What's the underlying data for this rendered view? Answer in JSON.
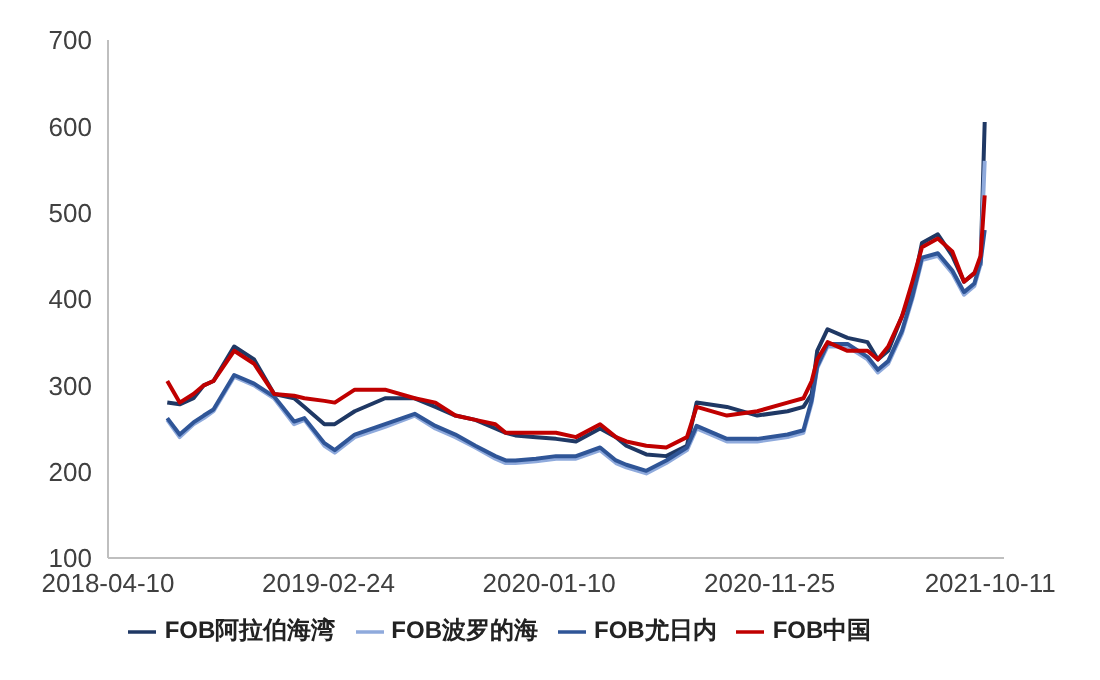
{
  "chart_data": {
    "type": "line",
    "x": [
      "2018-07-05",
      "2018-07-23",
      "2018-08-12",
      "2018-08-27",
      "2018-09-10",
      "2018-10-10",
      "2018-11-08",
      "2018-12-07",
      "2019-01-05",
      "2019-01-20",
      "2019-02-18",
      "2019-03-05",
      "2019-04-03",
      "2019-05-17",
      "2019-06-29",
      "2019-07-29",
      "2019-08-27",
      "2019-09-25",
      "2019-10-24",
      "2019-11-08",
      "2019-11-22",
      "2019-12-22",
      "2020-01-20",
      "2020-02-18",
      "2020-03-24",
      "2020-04-16",
      "2020-05-01",
      "2020-05-30",
      "2020-06-28",
      "2020-07-28",
      "2020-08-11",
      "2020-09-24",
      "2020-11-07",
      "2020-12-21",
      "2021-01-13",
      "2021-01-25",
      "2021-02-02",
      "2021-02-17",
      "2021-03-18",
      "2021-04-16",
      "2021-05-01",
      "2021-05-16",
      "2021-06-05",
      "2021-06-20",
      "2021-07-04",
      "2021-07-27",
      "2021-08-17",
      "2021-09-03",
      "2021-09-18",
      "2021-09-27",
      "2021-10-03"
    ],
    "series": [
      {
        "name": "FOB阿拉伯海湾",
        "color": "#1f3864",
        "values": [
          280,
          278,
          285,
          300,
          305,
          345,
          330,
          290,
          285,
          275,
          255,
          255,
          270,
          285,
          285,
          275,
          265,
          260,
          250,
          245,
          242,
          240,
          238,
          235,
          250,
          240,
          230,
          220,
          218,
          230,
          280,
          275,
          265,
          270,
          275,
          290,
          340,
          365,
          355,
          350,
          330,
          340,
          380,
          410,
          465,
          475,
          450,
          420,
          430,
          440,
          605
        ]
      },
      {
        "name": "FOB波罗的海",
        "color": "#8faadc",
        "values": [
          260,
          240,
          255,
          262,
          270,
          310,
          300,
          285,
          255,
          260,
          230,
          222,
          240,
          252,
          265,
          250,
          240,
          228,
          215,
          210,
          210,
          212,
          215,
          215,
          225,
          210,
          205,
          198,
          210,
          225,
          250,
          235,
          235,
          240,
          245,
          280,
          320,
          345,
          345,
          330,
          315,
          325,
          360,
          400,
          445,
          450,
          430,
          405,
          415,
          440,
          560
        ]
      },
      {
        "name": "FOB尤日内",
        "color": "#2f5597",
        "values": [
          262,
          243,
          257,
          265,
          272,
          312,
          302,
          287,
          258,
          262,
          233,
          225,
          243,
          255,
          267,
          253,
          243,
          230,
          218,
          213,
          213,
          215,
          218,
          218,
          228,
          213,
          208,
          201,
          213,
          228,
          253,
          238,
          238,
          243,
          248,
          283,
          322,
          348,
          348,
          333,
          318,
          328,
          363,
          403,
          448,
          453,
          433,
          408,
          418,
          443,
          480
        ]
      },
      {
        "name": "FOB中国",
        "color": "#c00000",
        "values": [
          305,
          280,
          290,
          300,
          305,
          340,
          325,
          290,
          288,
          285,
          282,
          280,
          295,
          295,
          285,
          280,
          265,
          260,
          255,
          245,
          245,
          245,
          245,
          240,
          255,
          240,
          235,
          230,
          228,
          240,
          275,
          265,
          270,
          280,
          285,
          305,
          330,
          350,
          340,
          340,
          330,
          345,
          380,
          420,
          460,
          470,
          455,
          420,
          430,
          450,
          520
        ]
      }
    ],
    "xlim": [
      "2018-04-10",
      "2021-10-31"
    ],
    "xticks": [
      "2018-04-10",
      "2019-02-24",
      "2020-01-10",
      "2020-11-25",
      "2021-10-11"
    ],
    "ylim": [
      100,
      700
    ],
    "yticks": [
      100,
      200,
      300,
      400,
      500,
      600,
      700
    ],
    "grid": false,
    "legend": "bottom",
    "marker": "none",
    "line_style": "solid"
  }
}
